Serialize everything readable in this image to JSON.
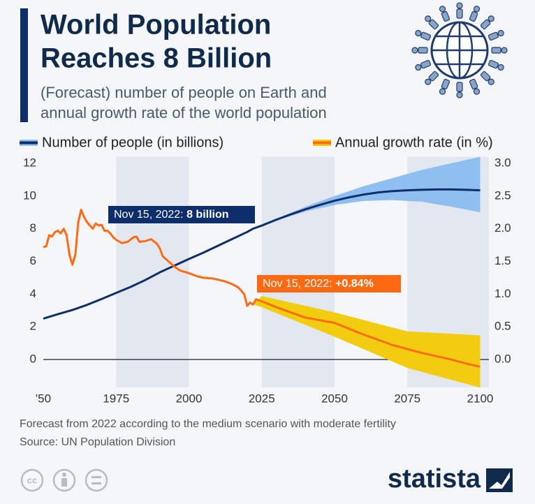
{
  "title": "World Population Reaches 8 Billion",
  "title_lines": [
    "World Population",
    "Reaches 8 Billion"
  ],
  "subtitle_lines": [
    "(Forecast) number of people on Earth and",
    "annual growth rate of the world population"
  ],
  "chart_data": {
    "type": "line",
    "xlim": [
      1950,
      2103
    ],
    "xticks": [
      {
        "value": 1950,
        "label": "'50"
      },
      1975,
      2000,
      2025,
      2050,
      2075,
      2100
    ],
    "ylim": [
      -1.7,
      12.4
    ],
    "yticks": [
      0,
      2,
      4,
      6,
      8,
      10,
      12
    ],
    "y2lim": [
      -0.425,
      3.1
    ],
    "y2ticks": [
      {
        "value": 0,
        "label": "0.0"
      },
      0.5,
      {
        "value": 1,
        "label": "1.0"
      },
      1.5,
      {
        "value": 2,
        "label": "2.0"
      },
      2.5,
      {
        "value": 3,
        "label": "3.0"
      }
    ],
    "grid": false,
    "shaded_periods": [
      [
        1975,
        2000
      ],
      [
        2025,
        2050
      ],
      [
        2075,
        2103
      ]
    ],
    "series": [
      {
        "name": "Number of people (in billions)",
        "color": "#0e2d6b",
        "axis": "y",
        "x": [
          1950,
          1955,
          1960,
          1965,
          1970,
          1975,
          1980,
          1985,
          1990,
          1995,
          2000,
          2005,
          2010,
          2015,
          2020,
          2022,
          2025,
          2030,
          2035,
          2040,
          2045,
          2050,
          2055,
          2060,
          2065,
          2070,
          2075,
          2080,
          2085,
          2090,
          2095,
          2100
        ],
        "values": [
          2.5,
          2.77,
          3.03,
          3.34,
          3.7,
          4.07,
          4.44,
          4.86,
          5.33,
          5.74,
          6.15,
          6.54,
          6.96,
          7.38,
          7.8,
          8.0,
          8.19,
          8.55,
          8.88,
          9.19,
          9.46,
          9.71,
          9.92,
          10.09,
          10.22,
          10.3,
          10.35,
          10.38,
          10.4,
          10.4,
          10.38,
          10.35
        ]
      },
      {
        "name": "Annual growth rate (in %)",
        "color": "#ff6a13",
        "axis": "y2",
        "x": [
          1950,
          1951,
          1952,
          1953,
          1954,
          1955,
          1956,
          1957,
          1958,
          1959,
          1960,
          1961,
          1962,
          1963,
          1964,
          1965,
          1966,
          1967,
          1968,
          1969,
          1970,
          1971,
          1972,
          1973,
          1974,
          1975,
          1977,
          1979,
          1981,
          1982,
          1983,
          1985,
          1987,
          1989,
          1990,
          1991,
          1993,
          1995,
          1997,
          2000,
          2003,
          2005,
          2008,
          2010,
          2012,
          2015,
          2017,
          2019,
          2020,
          2021,
          2022,
          2023,
          2025,
          2030,
          2035,
          2040,
          2045,
          2050,
          2055,
          2060,
          2065,
          2070,
          2075,
          2080,
          2085,
          2090,
          2095,
          2100
        ],
        "values": [
          1.72,
          1.73,
          1.9,
          1.88,
          1.95,
          1.97,
          1.93,
          2.0,
          1.9,
          1.6,
          1.45,
          1.6,
          2.1,
          2.29,
          2.18,
          2.1,
          2.05,
          2.0,
          2.08,
          2.05,
          2.06,
          1.97,
          1.97,
          1.93,
          1.87,
          1.83,
          1.78,
          1.8,
          1.87,
          1.88,
          1.8,
          1.81,
          1.84,
          1.77,
          1.7,
          1.58,
          1.5,
          1.42,
          1.36,
          1.32,
          1.27,
          1.25,
          1.24,
          1.22,
          1.2,
          1.15,
          1.1,
          1.0,
          0.82,
          0.87,
          0.84,
          0.92,
          0.89,
          0.8,
          0.72,
          0.64,
          0.6,
          0.56,
          0.47,
          0.38,
          0.3,
          0.22,
          0.16,
          0.1,
          0.05,
          0.0,
          -0.06,
          -0.11
        ]
      }
    ],
    "bands": [
      {
        "color": "#8fbff0",
        "axis": "y",
        "x": [
          2022,
          2030,
          2040,
          2050,
          2060,
          2070,
          2080,
          2090,
          2100
        ],
        "low": [
          8.0,
          8.5,
          9.05,
          9.45,
          9.7,
          9.75,
          9.65,
          9.35,
          9.0
        ],
        "high": [
          8.0,
          8.6,
          9.35,
          10.0,
          10.6,
          11.1,
          11.6,
          12.0,
          12.4
        ]
      },
      {
        "color": "#f2cc0f",
        "axis": "y2",
        "x": [
          2022,
          2025,
          2050,
          2075,
          2100
        ],
        "low": [
          0.84,
          0.8,
          0.35,
          -0.13,
          -0.43
        ],
        "high": [
          0.84,
          0.97,
          0.72,
          0.43,
          0.37
        ]
      }
    ],
    "annotations": [
      {
        "prefix": "Nov 15, 2022:",
        "value": "8 billion"
      },
      {
        "prefix": "Nov 15, 2022:",
        "value": "+0.84%"
      }
    ]
  },
  "footer": [
    "Forecast from 2022 according to the medium scenario with moderate fertility",
    "Source: UN Population Division"
  ],
  "license_icon": "cc",
  "brand": "statista"
}
